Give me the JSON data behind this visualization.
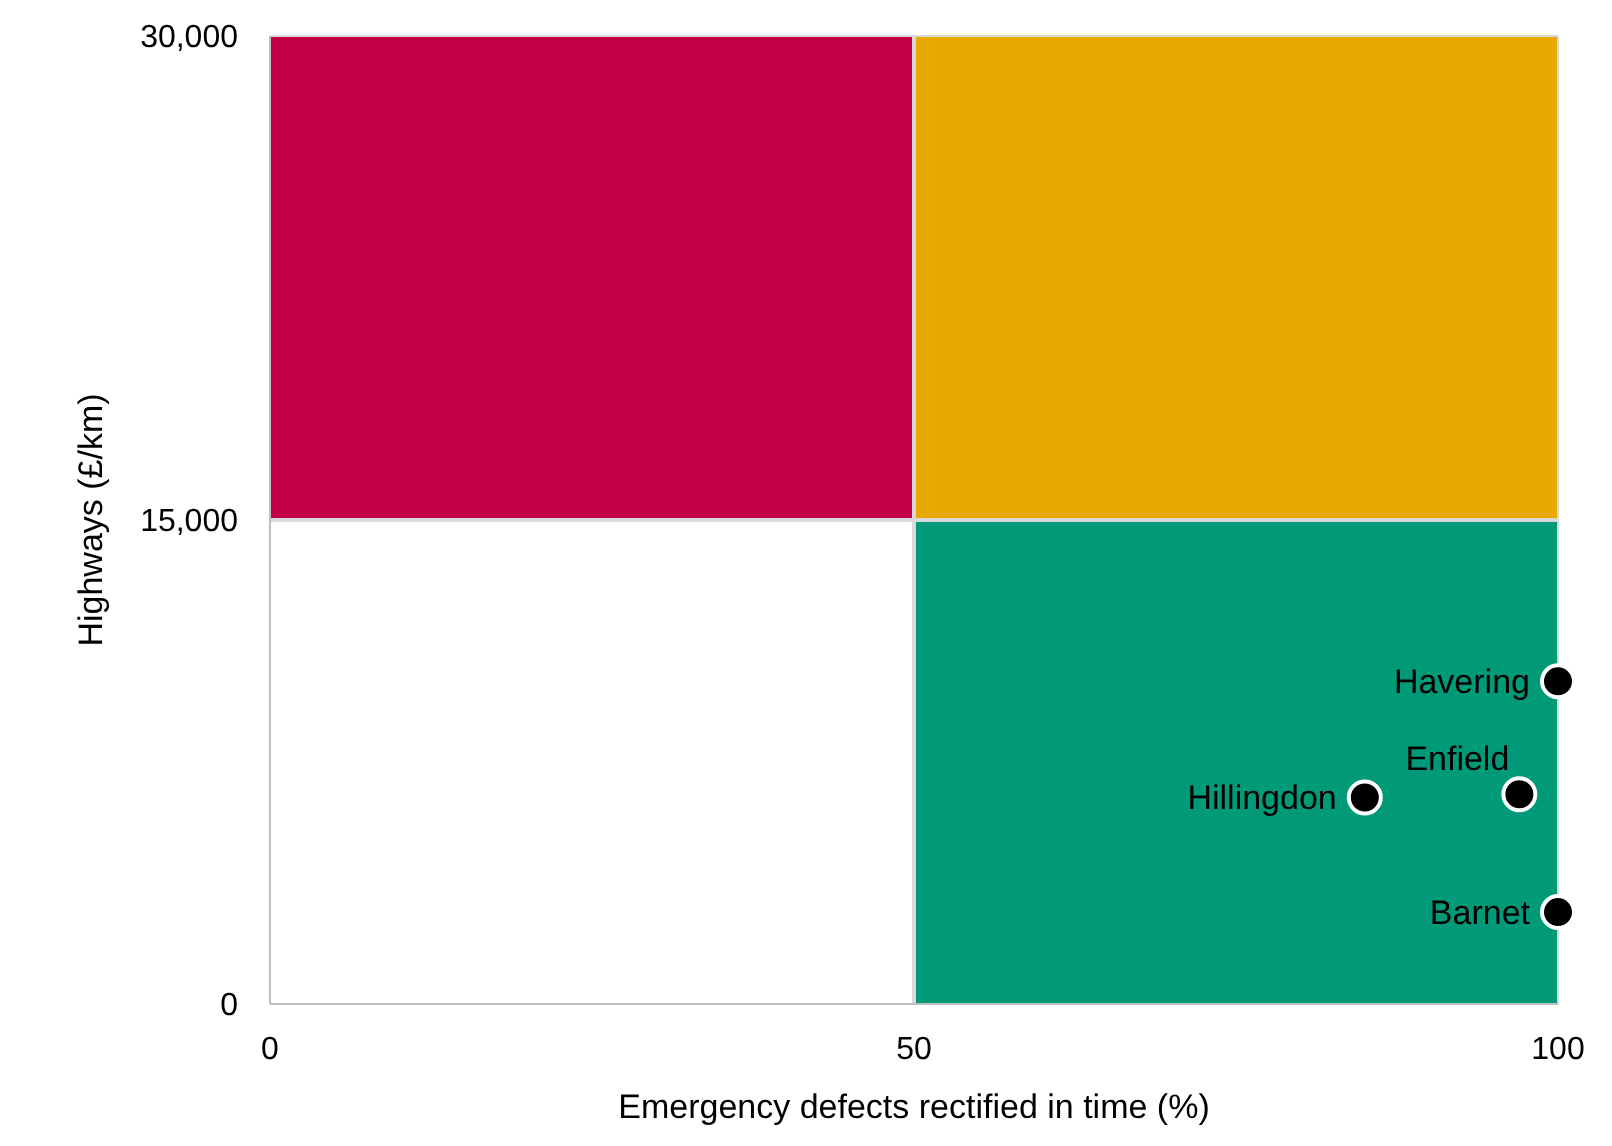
{
  "chart_data": {
    "type": "scatter",
    "xlabel": "Emergency defects rectified in time (%)",
    "ylabel": "Highways (£/km)",
    "series": [
      {
        "color": "#000000",
        "x": [
          100,
          97,
          85,
          100
        ],
        "values": [
          10000,
          6500,
          6400,
          2850
        ]
      }
    ],
    "annotations": [
      {
        "text": "Havering",
        "x": 100,
        "y": 10000
      },
      {
        "text": "Enfield",
        "x": 97,
        "y": 6500
      },
      {
        "text": "Hillingdon",
        "x": 85,
        "y": 6400
      },
      {
        "text": "Barnet",
        "x": 100,
        "y": 2850
      }
    ],
    "xlim": [
      0,
      100
    ],
    "xticks": [
      0,
      50,
      100
    ],
    "ylim": [
      0,
      30000
    ],
    "yticks": [
      0,
      {
        "value": 15000,
        "label": "15,000"
      },
      {
        "value": 30000,
        "label": "30,000"
      }
    ],
    "ref_lines": [
      {
        "axis": "x",
        "value": 50,
        "color": "#d9d9d9"
      },
      {
        "axis": "y",
        "value": 15000,
        "color": "#d9d9d9"
      }
    ],
    "marker": "circle",
    "legend": false
  }
}
